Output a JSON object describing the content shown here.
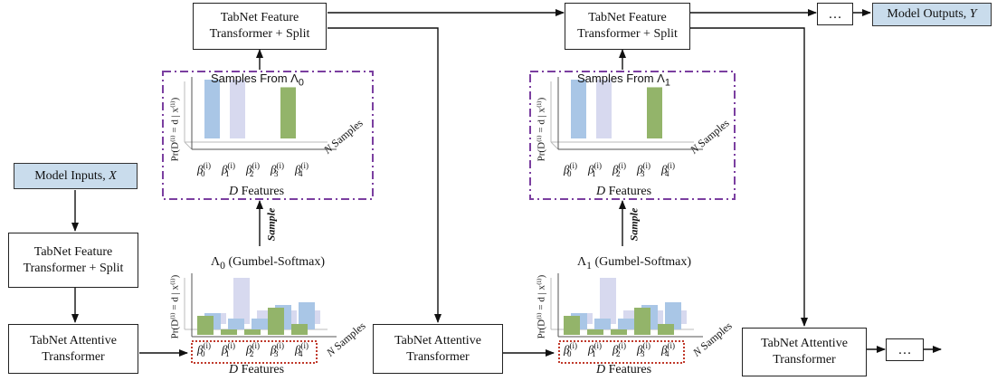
{
  "boxes": {
    "feat_top_left": "TabNet Feature\nTransformer + Split",
    "feat_top_right": "TabNet Feature\nTransformer + Split",
    "feat_left": "TabNet Feature\nTransformer + Split",
    "att_left": "TabNet Attentive\nTransformer",
    "att_mid": "TabNet Attentive\nTransformer",
    "att_right": "TabNet Attentive\nTransformer",
    "ellipsis_top": "…",
    "ellipsis_bottom": "…"
  },
  "inputs": {
    "label": "Model Inputs, ",
    "var": "X"
  },
  "outputs": {
    "label": "Model Outputs, ",
    "var": "Y"
  },
  "panels": [
    {
      "samples_title": "Samples From Λ",
      "samples_sub": "0",
      "gumbel": "Λ",
      "gumbel_sub": "0",
      "gumbel_rest": " (Gumbel-Softmax)"
    },
    {
      "samples_title": "Samples From Λ",
      "samples_sub": "1",
      "gumbel": "Λ",
      "gumbel_sub": "1",
      "gumbel_rest": " (Gumbel-Softmax)"
    }
  ],
  "sample_label": "Sample",
  "d_features_var": "D",
  "d_features_text": " Features",
  "n_samples_var": "N",
  "n_samples_text": " Samples",
  "y_axis_label": "Pr(D⁽ⁱ⁾ = d | x⁽ⁱ⁾)",
  "beta_symbol": "β",
  "beta_sup": "(i)",
  "beta_subs": [
    "0",
    "1",
    "2",
    "3",
    "4"
  ],
  "colors": {
    "blue": "#a9c6e6",
    "lavender": "#d7d9ef",
    "green": "#93b46a",
    "purple_dash": "#7b3fa0",
    "red_dot": "#c0392b",
    "box_blue": "#c9dcec"
  },
  "chart_data": [
    {
      "type": "bar",
      "title": "Samples From Λ0",
      "categories": [
        "β0(i)",
        "β1(i)",
        "β2(i)",
        "β3(i)"
      ],
      "series": [
        {
          "color": "blue",
          "values": [
            1,
            0,
            0,
            0
          ]
        },
        {
          "color": "lavender",
          "values": [
            0,
            1,
            0,
            0
          ]
        },
        {
          "color": "green",
          "values": [
            0,
            0,
            0,
            1
          ]
        }
      ]
    },
    {
      "type": "bar",
      "title": "Λ0 (Gumbel-Softmax)",
      "categories": [
        "β0(i)",
        "β1(i)",
        "β2(i)",
        "β3(i)",
        "β4(i)"
      ],
      "series": [
        {
          "color": "lavender",
          "values": [
            0.2,
            0.85,
            0.25,
            0.25,
            0.25
          ]
        },
        {
          "color": "blue",
          "values": [
            0.3,
            0.2,
            0.2,
            0.45,
            0.5
          ]
        },
        {
          "color": "green",
          "values": [
            0.35,
            0.1,
            0.1,
            0.5,
            0.2
          ]
        }
      ]
    },
    {
      "type": "bar",
      "title": "Samples From Λ1",
      "categories": [
        "β0(i)",
        "β1(i)",
        "β2(i)",
        "β3(i)"
      ],
      "series": [
        {
          "color": "blue",
          "values": [
            1,
            0,
            0,
            0
          ]
        },
        {
          "color": "lavender",
          "values": [
            0,
            1,
            0,
            0
          ]
        },
        {
          "color": "green",
          "values": [
            0,
            0,
            0,
            1
          ]
        }
      ]
    },
    {
      "type": "bar",
      "title": "Λ1 (Gumbel-Softmax)",
      "categories": [
        "β0(i)",
        "β1(i)",
        "β2(i)",
        "β3(i)",
        "β4(i)"
      ],
      "series": [
        {
          "color": "lavender",
          "values": [
            0.2,
            0.85,
            0.25,
            0.25,
            0.25
          ]
        },
        {
          "color": "blue",
          "values": [
            0.3,
            0.2,
            0.2,
            0.45,
            0.5
          ]
        },
        {
          "color": "green",
          "values": [
            0.35,
            0.1,
            0.1,
            0.5,
            0.2
          ]
        }
      ]
    }
  ]
}
